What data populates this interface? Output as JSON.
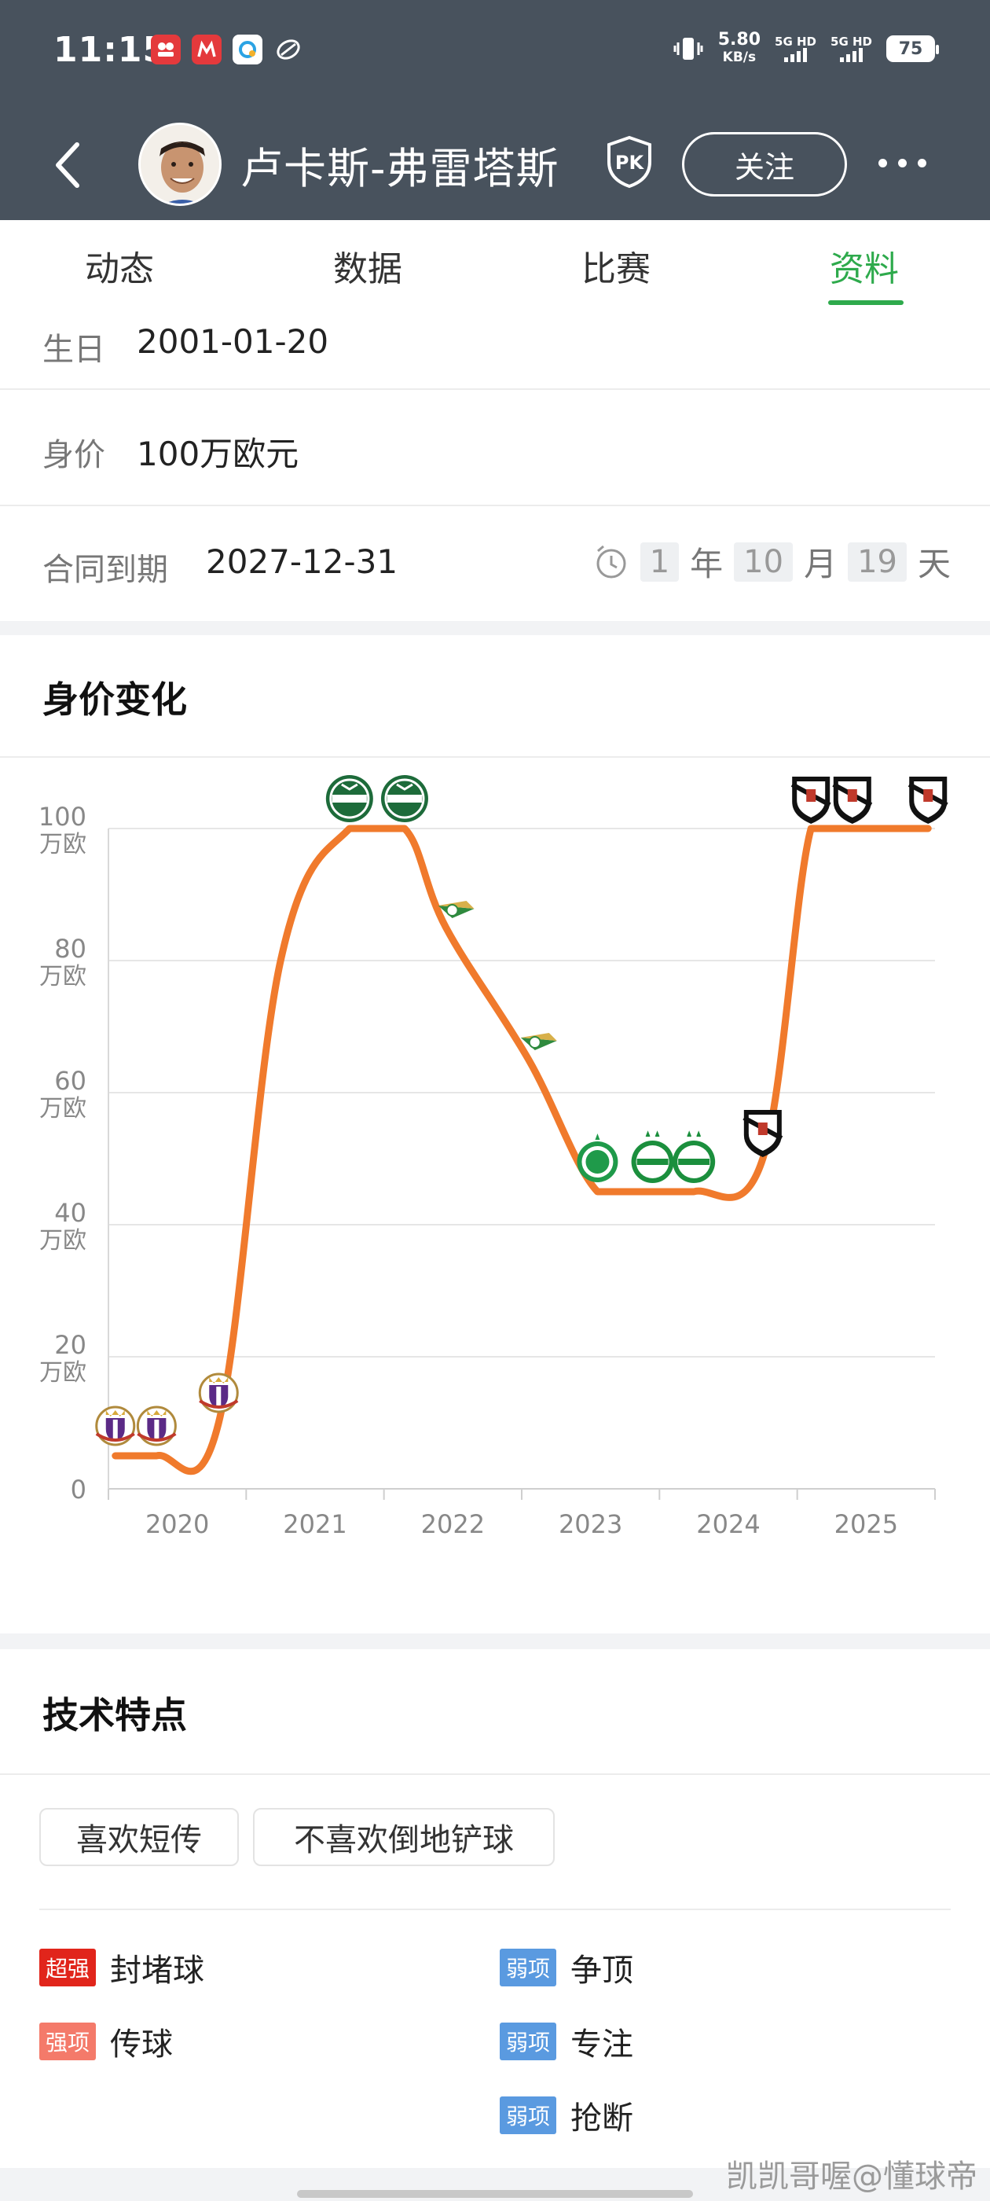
{
  "status_bar": {
    "time": "11:15",
    "speed_value": "5.80",
    "speed_unit": "KB/s",
    "sim1": "5G HD",
    "sim2": "5G HD",
    "battery": "75"
  },
  "header": {
    "player_name": "卢卡斯-弗雷塔斯",
    "pk_label": "PK",
    "follow_label": "关注"
  },
  "tabs": [
    {
      "label": "动态"
    },
    {
      "label": "数据"
    },
    {
      "label": "比赛"
    },
    {
      "label": "资料"
    }
  ],
  "active_tab": 3,
  "info": {
    "birthday_label": "生日",
    "birthday_value": "2001-01-20",
    "market_value_label": "身价",
    "market_value_value": "100万欧元",
    "contract_label": "合同到期",
    "contract_value": "2027-12-31",
    "countdown": {
      "years": "1",
      "years_unit": "年",
      "months": "10",
      "months_unit": "月",
      "days": "19",
      "days_unit": "天"
    }
  },
  "value_chart": {
    "title": "身价变化"
  },
  "chart_data": {
    "type": "line",
    "title": "身价变化",
    "xlabel": "",
    "ylabel": "",
    "x_ticks": [
      "2020",
      "2021",
      "2022",
      "2023",
      "2024",
      "2025"
    ],
    "y_ticks": [
      {
        "value": 0,
        "label": "0",
        "unit": ""
      },
      {
        "value": 20,
        "label": "20",
        "unit": "万欧"
      },
      {
        "value": 40,
        "label": "40",
        "unit": "万欧"
      },
      {
        "value": 60,
        "label": "60",
        "unit": "万欧"
      },
      {
        "value": 80,
        "label": "80",
        "unit": "万欧"
      },
      {
        "value": 100,
        "label": "100",
        "unit": "万欧"
      }
    ],
    "xlim": [
      2019.5,
      2025.5
    ],
    "ylim": [
      0,
      100
    ],
    "grid": true,
    "line_color": "#f07a2c",
    "series": [
      {
        "values": [
          {
            "x": 2019.55,
            "y": 5,
            "club": "Real Valladolid"
          },
          {
            "x": 2019.85,
            "y": 5,
            "club": "Real Valladolid"
          },
          {
            "x": 2020.3,
            "y": 10,
            "club": "Real Valladolid"
          },
          {
            "x": 2020.75,
            "y": 80,
            "club": ""
          },
          {
            "x": 2021.25,
            "y": 100,
            "club": "Palmeiras"
          },
          {
            "x": 2021.65,
            "y": 100,
            "club": "Palmeiras"
          },
          {
            "x": 2021.95,
            "y": 85,
            "club": "Moreirense"
          },
          {
            "x": 2022.55,
            "y": 65,
            "club": "Moreirense"
          },
          {
            "x": 2023.05,
            "y": 45,
            "club": "Chapecoense"
          },
          {
            "x": 2023.45,
            "y": 45,
            "club": "Juventude"
          },
          {
            "x": 2023.75,
            "y": 45,
            "club": "Juventude"
          },
          {
            "x": 2024.25,
            "y": 50,
            "club": "Vasco da Gama"
          },
          {
            "x": 2024.6,
            "y": 100,
            "club": "Vasco da Gama"
          },
          {
            "x": 2024.9,
            "y": 100,
            "club": "Vasco da Gama"
          },
          {
            "x": 2025.45,
            "y": 100,
            "club": "Vasco da Gama"
          }
        ]
      }
    ]
  },
  "tech": {
    "title": "技术特点",
    "tags": [
      "喜欢短传",
      "不喜欢倒地铲球"
    ],
    "left_features": [
      {
        "badge": "超强",
        "badge_color": "#e1251b",
        "text": "封堵球"
      },
      {
        "badge": "强项",
        "badge_color": "#f47a6a",
        "text": "传球"
      }
    ],
    "right_features": [
      {
        "badge": "弱项",
        "badge_color": "#5a9ae0",
        "text": "争顶"
      },
      {
        "badge": "弱项",
        "badge_color": "#5a9ae0",
        "text": "专注"
      },
      {
        "badge": "弱项",
        "badge_color": "#5a9ae0",
        "text": "抢断"
      }
    ]
  },
  "watermark": "凯凯哥喔@懂球帝"
}
